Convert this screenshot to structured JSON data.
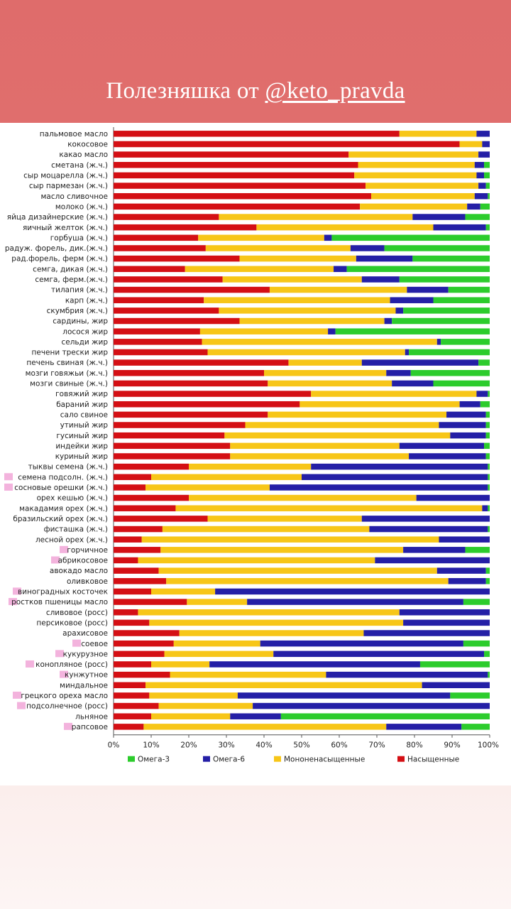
{
  "header": {
    "title_prefix": "Полезняшка от",
    "handle": "@keto_pravda"
  },
  "chart_data": {
    "type": "bar",
    "orientation": "horizontal",
    "stacked": true,
    "percent": true,
    "xlim": [
      0,
      100
    ],
    "x_ticks": [
      "0%",
      "10%",
      "20%",
      "30%",
      "40%",
      "50%",
      "60%",
      "70%",
      "80%",
      "90%",
      "100%"
    ],
    "series_order": [
      "Насыщенные",
      "Мононенасыщенные",
      "Омега-6",
      "Омега-3"
    ],
    "colors": {
      "Насыщенные": "#d40f14",
      "Мононенасыщенные": "#f7c618",
      "Омега-6": "#241fa6",
      "Омега-3": "#2ccc2c"
    },
    "legend": [
      {
        "name": "Омега-3",
        "color": "#2ccc2c"
      },
      {
        "name": "Омега-6",
        "color": "#241fa6"
      },
      {
        "name": "Мононенасыщенные",
        "color": "#f7c618"
      },
      {
        "name": "Насыщенные",
        "color": "#d40f14"
      }
    ],
    "categories": [
      {
        "label": "пальмовое масло",
        "values": [
          76,
          20.5,
          3.5,
          0
        ]
      },
      {
        "label": "кокосовое",
        "values": [
          92,
          6,
          2,
          0
        ]
      },
      {
        "label": "какао масло",
        "values": [
          62.5,
          34.5,
          3,
          0
        ]
      },
      {
        "label": "сметана (ж.ч.)",
        "values": [
          65,
          31,
          2.5,
          1.5
        ]
      },
      {
        "label": "сыр моцарелла (ж.ч.)",
        "values": [
          64,
          32.5,
          2,
          1.5
        ]
      },
      {
        "label": "сыр пармезан (ж.ч.)",
        "values": [
          67,
          30,
          2,
          1
        ]
      },
      {
        "label": "масло сливочное",
        "values": [
          68.5,
          27.5,
          3.5,
          0.5
        ]
      },
      {
        "label": "молоко (ж.ч.)",
        "values": [
          65.5,
          28.5,
          3.5,
          2.5
        ]
      },
      {
        "label": "яйца дизайнерские (ж.ч.)",
        "values": [
          28,
          51.5,
          14,
          6.5
        ]
      },
      {
        "label": "яичный желток (ж.ч.)",
        "values": [
          38,
          47,
          14,
          1
        ]
      },
      {
        "label": "горбуша (ж.ч.)",
        "values": [
          22.5,
          33.5,
          2,
          42
        ]
      },
      {
        "label": "радуж. форель, дик.(ж.ч.)",
        "values": [
          24.5,
          38.5,
          9,
          28
        ]
      },
      {
        "label": "рад.форель, ферм (ж.ч.)",
        "values": [
          33.5,
          31,
          15,
          20.5
        ]
      },
      {
        "label": "семга, дикая (ж.ч.)",
        "values": [
          19,
          39.5,
          3.5,
          38
        ]
      },
      {
        "label": "семга, ферм.(ж.ч.)",
        "values": [
          29,
          37,
          10,
          24
        ]
      },
      {
        "label": "тилапия (ж.ч.)",
        "values": [
          41.5,
          36.5,
          11,
          11
        ]
      },
      {
        "label": "карп (ж.ч.)",
        "values": [
          24,
          49.5,
          11.5,
          15
        ]
      },
      {
        "label": "скумбрия (ж.ч.)",
        "values": [
          28,
          47,
          2,
          23
        ]
      },
      {
        "label": "сардины, жир",
        "values": [
          33.5,
          38.5,
          2,
          26
        ]
      },
      {
        "label": "лосося жир",
        "values": [
          23,
          34,
          2,
          41
        ]
      },
      {
        "label": "сельди жир",
        "values": [
          23.5,
          62.5,
          1,
          13
        ]
      },
      {
        "label": "печени трески жир",
        "values": [
          25,
          52.5,
          1,
          21.5
        ]
      },
      {
        "label": "печень свиная (ж.ч.)",
        "values": [
          46.5,
          19.5,
          31,
          3
        ]
      },
      {
        "label": "мозги говяжьи (ж.ч.)",
        "values": [
          40,
          32.5,
          6.5,
          21
        ]
      },
      {
        "label": "мозги свиные (ж.ч.)",
        "values": [
          41,
          33,
          11,
          15
        ]
      },
      {
        "label": "говяжий жир",
        "values": [
          52.5,
          44,
          3,
          0.5
        ]
      },
      {
        "label": "бараний жир",
        "values": [
          49.5,
          42.5,
          5.5,
          2.5
        ]
      },
      {
        "label": "сало свиное",
        "values": [
          41,
          47.5,
          10.5,
          1
        ]
      },
      {
        "label": "утиный жир",
        "values": [
          35,
          51.5,
          12.5,
          1
        ]
      },
      {
        "label": "гусиный жир",
        "values": [
          29.5,
          60,
          9.5,
          1
        ]
      },
      {
        "label": "индейки жир",
        "values": [
          31,
          45,
          22.5,
          1.5
        ]
      },
      {
        "label": "куриный жир",
        "values": [
          31,
          47.5,
          20.5,
          1
        ]
      },
      {
        "label": "тыквы семена (ж.ч.)",
        "values": [
          20,
          32.5,
          47,
          0.5
        ]
      },
      {
        "label": "семена подсолн. (ж.ч.)",
        "values": [
          10,
          40,
          49.5,
          0.5
        ]
      },
      {
        "label": "сосновые орешки (ж.ч.)",
        "values": [
          8.5,
          33,
          58,
          0.5
        ]
      },
      {
        "label": "орех кешью (ж.ч.)",
        "values": [
          20,
          60.5,
          19.5,
          0
        ]
      },
      {
        "label": "макадамия орех (ж.ч.)",
        "values": [
          16.5,
          81.5,
          1.5,
          0.5
        ]
      },
      {
        "label": "бразильский орех (ж.ч.)",
        "values": [
          25,
          41,
          34,
          0
        ]
      },
      {
        "label": "фисташка (ж.ч.)",
        "values": [
          13,
          55,
          31.5,
          0.5
        ]
      },
      {
        "label": "лесной орех (ж.ч.)",
        "values": [
          7.5,
          79,
          13.5,
          0
        ]
      },
      {
        "label": "горчичное",
        "values": [
          12.5,
          64.5,
          16.5,
          6.5
        ]
      },
      {
        "label": "абрикосовое",
        "values": [
          6.5,
          63,
          30.5,
          0
        ]
      },
      {
        "label": "авокадо масло",
        "values": [
          12,
          74,
          13,
          1
        ]
      },
      {
        "label": "оливковое",
        "values": [
          14,
          75,
          10,
          1
        ]
      },
      {
        "label": "виноградных косточек",
        "values": [
          10,
          17,
          73,
          0
        ]
      },
      {
        "label": "ростков пшеницы масло",
        "values": [
          19.5,
          16,
          57.5,
          7
        ]
      },
      {
        "label": "сливовое (росс)",
        "values": [
          6.5,
          69.5,
          24,
          0
        ]
      },
      {
        "label": "персиковое (росс)",
        "values": [
          9.5,
          67.5,
          23,
          0
        ]
      },
      {
        "label": "арахисовое",
        "values": [
          17.5,
          49,
          33.5,
          0
        ]
      },
      {
        "label": "соевое",
        "values": [
          16,
          23,
          54,
          7
        ]
      },
      {
        "label": "кукурузное",
        "values": [
          13.5,
          29,
          56,
          1.5
        ]
      },
      {
        "label": "конопляное (росс)",
        "values": [
          10,
          15.5,
          56,
          18.5
        ]
      },
      {
        "label": "кунжутное",
        "values": [
          15,
          41.5,
          43,
          0.5
        ]
      },
      {
        "label": "миндальное",
        "values": [
          8.5,
          73.5,
          18,
          0
        ]
      },
      {
        "label": "грецкого ореха масло",
        "values": [
          9.5,
          23.5,
          56.5,
          10.5
        ]
      },
      {
        "label": "подсолнечное (росс)",
        "values": [
          12,
          25,
          63,
          0
        ]
      },
      {
        "label": "льняное",
        "values": [
          10,
          21,
          13.5,
          55.5
        ]
      },
      {
        "label": "рапсовое",
        "values": [
          8,
          64.5,
          20,
          7.5
        ]
      }
    ],
    "highlighted": [
      "семена подсолн. (ж.ч.)",
      "сосновые орешки (ж.ч.)",
      "горчичное",
      "абрикосовое",
      "виноградных косточек",
      "ростков пшеницы масло",
      "соевое",
      "кукурузное",
      "конопляное (росс)",
      "кунжутное",
      "грецкого ореха масло",
      "подсолнечное (росс)",
      "рапсовое"
    ]
  }
}
